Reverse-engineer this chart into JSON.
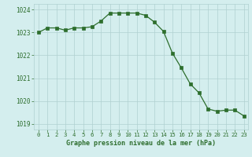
{
  "hours": [
    0,
    1,
    2,
    3,
    4,
    5,
    6,
    7,
    8,
    9,
    10,
    11,
    12,
    13,
    14,
    15,
    16,
    17,
    18,
    19,
    20,
    21,
    22,
    23
  ],
  "pressure": [
    1023.0,
    1023.2,
    1023.2,
    1023.1,
    1023.2,
    1023.2,
    1023.25,
    1023.5,
    1023.85,
    1023.85,
    1023.85,
    1023.85,
    1023.75,
    1023.45,
    1023.05,
    1022.1,
    1021.45,
    1020.75,
    1020.35,
    1019.65,
    1019.55,
    1019.6,
    1019.6,
    1019.35
  ],
  "line_color": "#2d6e2d",
  "marker": "s",
  "marker_size": 2.5,
  "bg_color": "#d4eeee",
  "grid_color": "#b0d0d0",
  "xlabel": "Graphe pression niveau de la mer (hPa)",
  "xlabel_color": "#2d6e2d",
  "tick_color": "#2d6e2d",
  "ylim": [
    1018.75,
    1024.25
  ],
  "yticks": [
    1019,
    1020,
    1021,
    1022,
    1023,
    1024
  ],
  "xticks": [
    0,
    1,
    2,
    3,
    4,
    5,
    6,
    7,
    8,
    9,
    10,
    11,
    12,
    13,
    14,
    15,
    16,
    17,
    18,
    19,
    20,
    21,
    22,
    23
  ]
}
